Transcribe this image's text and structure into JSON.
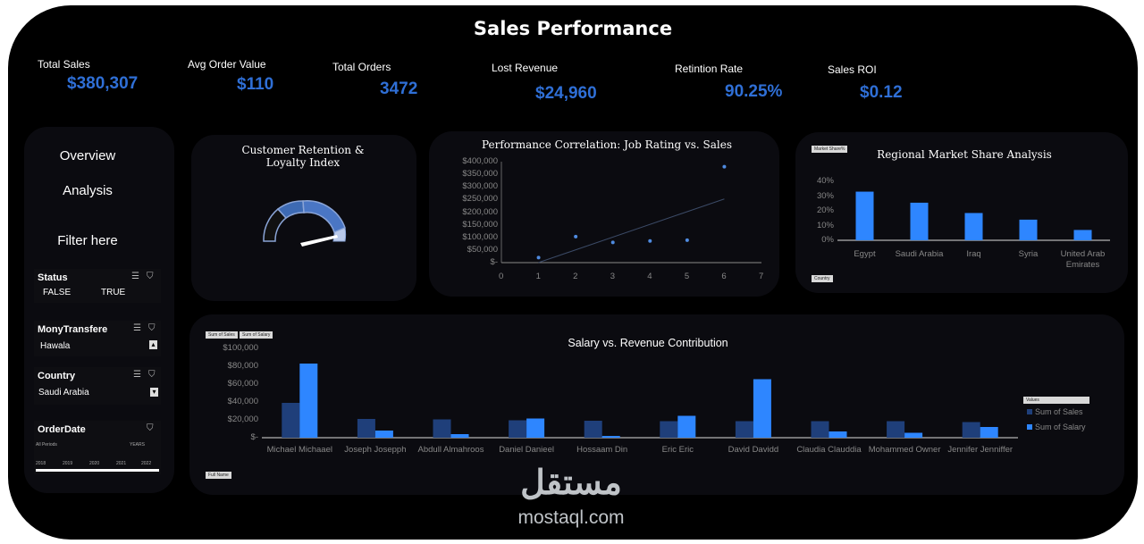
{
  "title": "Sales Performance",
  "kpis": [
    {
      "label": "Total Sales",
      "value": "$380,307"
    },
    {
      "label": "Avg Order Value",
      "value": "$110"
    },
    {
      "label": "Total Orders",
      "value": "3472"
    },
    {
      "label": "Lost Revenue",
      "value": "$24,960"
    },
    {
      "label": "Retintion Rate",
      "value": "90.25%"
    },
    {
      "label": "Sales ROI",
      "value": "$0.12"
    }
  ],
  "nav": {
    "overview": "Overview",
    "analysis": "Analysis",
    "filter": "Filter here"
  },
  "slicers": {
    "status": {
      "title": "Status",
      "items": [
        "FALSE",
        "TRUE"
      ]
    },
    "money": {
      "title": "MonyTransfere",
      "value": "Hawala"
    },
    "country": {
      "title": "Country",
      "value": "Saudi Arabia"
    },
    "orderdate": {
      "title": "OrderDate",
      "period": "All Periods",
      "unit": "YEARS",
      "years": [
        "2018",
        "2019",
        "2020",
        "2021",
        "2022"
      ]
    }
  },
  "icons": {
    "multi_select": "multi-select-icon",
    "clear_filter": "clear-filter-icon",
    "scroll": "scroll-arrow-icon"
  },
  "colors": {
    "accent": "#2f6fd6",
    "bar_light": "#2e86ff",
    "bar_dark": "#1f3f7a",
    "gauge": "#4a76c4"
  },
  "gauge": {
    "title": "Customer Retention & Loyalty Index"
  },
  "chart_data": [
    {
      "type": "scatter",
      "title": "Performance Correlation: Job Rating vs. Sales",
      "x": [
        1,
        2,
        3,
        4,
        5,
        6
      ],
      "y": [
        20000,
        103000,
        80000,
        86000,
        89000,
        380000
      ],
      "xlim": [
        0,
        7
      ],
      "ylim": [
        0,
        400000
      ],
      "xticks": [
        "0",
        "1",
        "2",
        "3",
        "4",
        "5",
        "6",
        "7"
      ],
      "yticks": [
        "$400,000",
        "$350,000",
        "$300,000",
        "$250,000",
        "$200,000",
        "$150,000",
        "$100,000",
        "$50,000",
        "$-"
      ],
      "trendline": true
    },
    {
      "type": "bar",
      "title": "Regional Market Share Analysis",
      "categories": [
        "Egypt",
        "Saudi Arabia",
        "Iraq",
        "Syria",
        "United Arab Emirates"
      ],
      "values": [
        33,
        25.5,
        18.5,
        14,
        7
      ],
      "ylim": [
        0,
        40
      ],
      "yticks": [
        "40%",
        "30%",
        "20%",
        "10%",
        "0%"
      ],
      "field_tags": [
        "Market Share%",
        "Country"
      ]
    },
    {
      "type": "bar",
      "title": "Salary vs. Revenue Contribution",
      "categories": [
        "Michael Michaael",
        "Joseph Josepph",
        "Abdull Almahroos",
        "Daniel Danieel",
        "Hossaam Din",
        "Eric Eric",
        "David Davidd",
        "Claudia Clauddia",
        "Mohammed Owner",
        "Jennifer Jenniffer"
      ],
      "series": [
        {
          "name": "Sum of Sales",
          "values": [
            39000,
            21000,
            20500,
            19500,
            19000,
            18500,
            18500,
            18500,
            18500,
            17500
          ]
        },
        {
          "name": "Sum of Salary",
          "values": [
            83000,
            8000,
            4000,
            21500,
            2000,
            24500,
            65500,
            7000,
            5500,
            12000
          ]
        }
      ],
      "ylim": [
        0,
        100000
      ],
      "yticks": [
        "$100,000",
        "$80,000",
        "$60,000",
        "$40,000",
        "$20,000",
        "$-"
      ],
      "legend_title": "Values",
      "field_tags": [
        "Sum of Sales",
        "Sum of Salary",
        "Full Name"
      ]
    }
  ],
  "watermark": {
    "arabic": "مستقل",
    "latin": "mostaql.com"
  }
}
